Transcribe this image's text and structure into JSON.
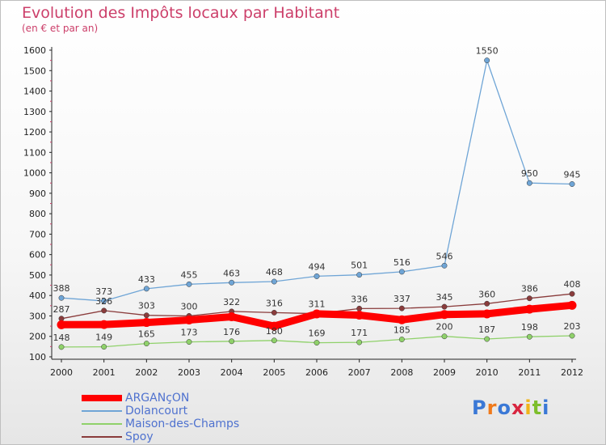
{
  "header": {
    "title": "Evolution des Impôts locaux par Habitant",
    "subtitle": "(en € et par an)"
  },
  "logo": {
    "text": "Proxiti",
    "colors": [
      "#3a78d6",
      "#f07a1b",
      "#3a78d6",
      "#d8253f",
      "#f0b41b",
      "#7dbe2c",
      "#3a78d6"
    ]
  },
  "chart_data": {
    "type": "line",
    "title": "Evolution des Impôts locaux par Habitant",
    "subtitle": "(en € et par an)",
    "xlabel": "",
    "ylabel": "",
    "x": [
      "2000",
      "2001",
      "2002",
      "2003",
      "2004",
      "2005",
      "2006",
      "2007",
      "2008",
      "2009",
      "2010",
      "2011",
      "2012"
    ],
    "ylim": [
      100,
      1600
    ],
    "yticks": [
      100,
      200,
      300,
      400,
      500,
      600,
      700,
      800,
      900,
      1000,
      1100,
      1200,
      1300,
      1400,
      1500,
      1600
    ],
    "grid": false,
    "legend_position": "bottom-left",
    "series": [
      {
        "name": "ARGANçON",
        "color": "#ff0000",
        "values": [
          257,
          258,
          268,
          280,
          296,
          250,
          310,
          304,
          281,
          307,
          310,
          333,
          352
        ],
        "show_labels": false
      },
      {
        "name": "Dolancourt",
        "color": "#6fa5d6",
        "values": [
          388,
          373,
          433,
          455,
          463,
          468,
          494,
          501,
          516,
          546,
          1550,
          950,
          945
        ],
        "show_labels": true
      },
      {
        "name": "Maison-des-Champs",
        "color": "#8fd16a",
        "values": [
          148,
          149,
          165,
          173,
          176,
          180,
          169,
          171,
          185,
          200,
          187,
          198,
          203
        ],
        "show_labels": true
      },
      {
        "name": "Spoy",
        "color": "#8a3c3c",
        "values": [
          287,
          326,
          303,
          300,
          322,
          316,
          311,
          336,
          337,
          345,
          360,
          386,
          408
        ],
        "show_labels": true
      }
    ]
  }
}
